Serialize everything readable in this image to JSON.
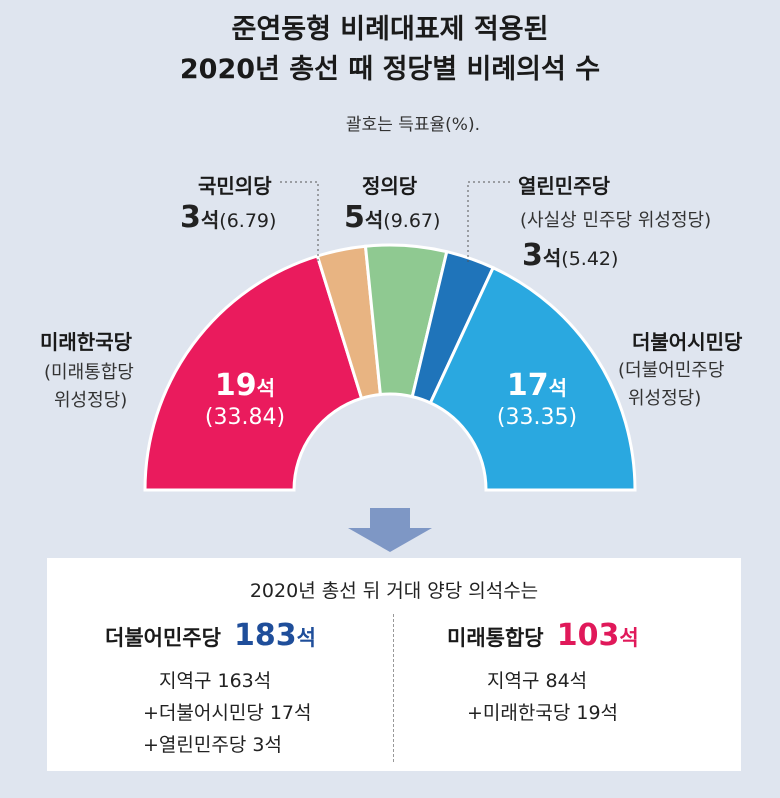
{
  "title_line1": "준연동형 비례대표제 적용된",
  "title_line2": "2020년 총선 때 정당별 비례의석 수",
  "note": "괄호는 득표율(%).",
  "colors": {
    "mirae": "#ea1b5d",
    "people": "#e8b482",
    "justice": "#8fc991",
    "open": "#1f74ba",
    "citizen": "#2aa8e0",
    "dem_total": "#1f4e9a",
    "mirae_total": "#e0195a"
  },
  "chart_data": {
    "type": "pie",
    "style": "half-donut (parliament)",
    "title": "준연동형 비례대표제 적용된 2020년 총선 때 정당별 비례의석 수",
    "unit": "석",
    "note": "괄호는 득표율(%).",
    "slices": [
      {
        "label": "미래한국당",
        "label_sub": "(미래통합당 위성정당)",
        "seats": 19,
        "seats_text": "19",
        "vote_share": "33.84",
        "color": "#ea1b5d"
      },
      {
        "label": "국민의당",
        "label_sub": "",
        "seats": 3,
        "seats_text": "3",
        "vote_share": "6.79",
        "color": "#e8b482"
      },
      {
        "label": "정의당",
        "label_sub": "",
        "seats": 5,
        "seats_text": "5",
        "vote_share": "9.67",
        "color": "#8fc991"
      },
      {
        "label": "열린민주당",
        "label_sub": "(사실상 민주당 위성정당)",
        "seats": 3,
        "seats_text": "3",
        "vote_share": "5.42",
        "color": "#1f74ba"
      },
      {
        "label": "더불어시민당",
        "label_sub": "(더불어민주당 위성정당)",
        "seats": 17,
        "seats_text": "17",
        "vote_share": "33.35",
        "color": "#2aa8e0"
      }
    ]
  },
  "labels": {
    "mirae_name": "미래한국당",
    "mirae_sub1": "(미래통합당",
    "mirae_sub2": "위성정당)",
    "mirae_seats": "19",
    "mirae_pct": "(33.84)",
    "people_name": "국민의당",
    "people_seats": "3",
    "people_pct": "(6.79)",
    "justice_name": "정의당",
    "justice_seats": "5",
    "justice_pct": "(9.67)",
    "open_name": "열린민주당",
    "open_sub": "(사실상 민주당 위성정당)",
    "open_seats": "3",
    "open_pct": "(5.42)",
    "citizen_name": "더불어시민당",
    "citizen_sub1": "(더불어민주당",
    "citizen_sub2": "위성정당)",
    "citizen_seats": "17",
    "citizen_pct": "(33.35)",
    "seat_unit": "석"
  },
  "summary": {
    "title": "2020년 총선 뒤 거대 양당 의석수는",
    "left": {
      "party": "더불어민주당",
      "total": "183",
      "unit": "석",
      "line1": "지역구 163석",
      "line2": "+더불어시민당 17석",
      "line3": "+열린민주당 3석"
    },
    "right": {
      "party": "미래통합당",
      "total": "103",
      "unit": "석",
      "line1": "지역구 84석",
      "line2": "+미래한국당 19석"
    }
  }
}
